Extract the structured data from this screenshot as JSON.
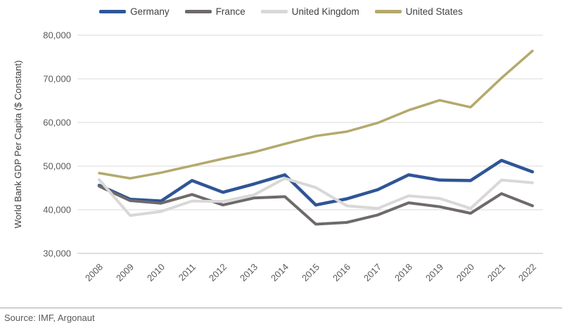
{
  "chart_data": {
    "type": "line",
    "title": "",
    "xlabel": "",
    "ylabel": "World Bank GDP Per Capita ($ Constant)",
    "x": [
      "2008",
      "2009",
      "2010",
      "2011",
      "2012",
      "2013",
      "2014",
      "2015",
      "2016",
      "2017",
      "2018",
      "2019",
      "2020",
      "2021",
      "2022"
    ],
    "series": [
      {
        "name": "Germany",
        "color": "#2f5597",
        "values": [
          45600,
          42400,
          42000,
          46700,
          44000,
          45900,
          48000,
          41100,
          42500,
          44600,
          48000,
          46800,
          46700,
          51300,
          48700
        ]
      },
      {
        "name": "France",
        "color": "#6f6a6a",
        "values": [
          45400,
          42100,
          41500,
          43500,
          41100,
          42700,
          43000,
          36700,
          37100,
          38800,
          41600,
          40700,
          39200,
          43700,
          40900
        ]
      },
      {
        "name": "United Kingdom",
        "color": "#d8d8d8",
        "values": [
          46900,
          38700,
          39600,
          42000,
          41900,
          43400,
          47200,
          45100,
          40900,
          40300,
          43200,
          42600,
          40300,
          46800,
          46200
        ]
      },
      {
        "name": "United States",
        "color": "#b4a96c",
        "values": [
          48400,
          47200,
          48500,
          50100,
          51700,
          53200,
          55100,
          56900,
          57900,
          59900,
          62800,
          65100,
          63500,
          70200,
          76400
        ]
      }
    ],
    "ylim": [
      30000,
      80000
    ],
    "ytick_step": 10000,
    "ytick_labels": [
      "30,000",
      "40,000",
      "50,000",
      "60,000",
      "70,000",
      "80,000"
    ],
    "grid": true,
    "legend_position": "top",
    "grid_color": "#d9d9d9",
    "axis_line_color": "#bfbfbf",
    "tick_text_color": "#595959",
    "axis_title_color": "#404040"
  },
  "footer": {
    "source_label": "Source: IMF, Argonaut"
  }
}
